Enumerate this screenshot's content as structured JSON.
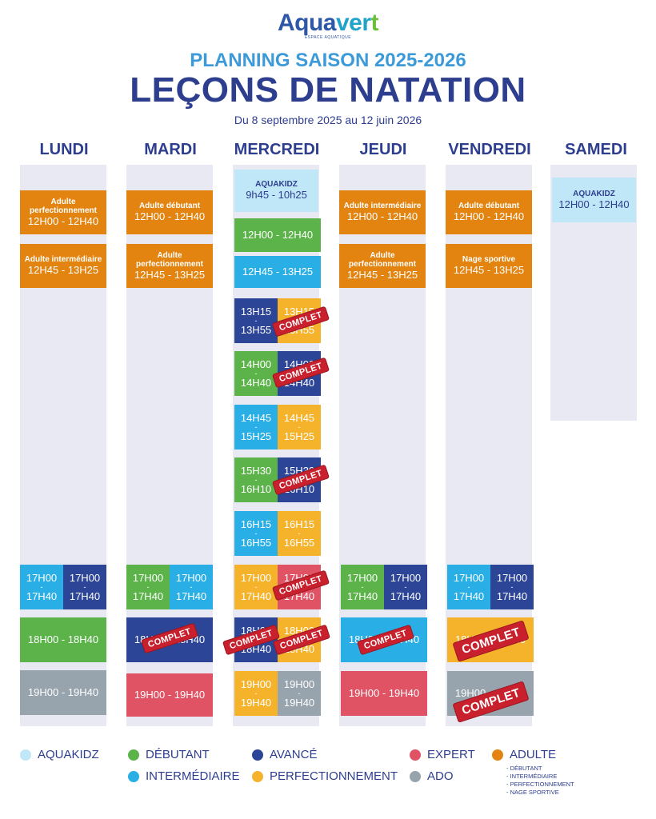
{
  "logo": {
    "part1": "Aqua",
    "part2": "ver",
    "part3": "t",
    "tagline": "ESPACE AQUATIQUE"
  },
  "header": {
    "subtitle": "PLANNING SAISON 2025-2026",
    "title": "LEÇONS DE NATATION",
    "dates": "Du 8 septembre 2025 au 12 juin 2026"
  },
  "days": [
    "LUNDI",
    "MARDI",
    "MERCREDI",
    "JEUDI",
    "VENDREDI",
    "SAMEDI"
  ],
  "full_label": "COMPLET",
  "colors": {
    "aquakidz": "#bfe7f7",
    "debutant": "#5cb34a",
    "intermediaire": "#2aaee6",
    "avance": "#2d4596",
    "perfectionnement": "#f5b32c",
    "expert": "#e05364",
    "ado": "#97a4ae",
    "adulte": "#e2840f",
    "column": "#e8e9f3"
  },
  "lundi": {
    "s1": {
      "name": "Adulte perfectionnement",
      "time": "12H00 - 12H40"
    },
    "s2": {
      "name": "Adulte intermédiaire",
      "time": "12H45 - 13H25"
    },
    "s3a": {
      "t1": "17H00",
      "t2": "17H40"
    },
    "s3b": {
      "t1": "17H00",
      "t2": "17H40"
    },
    "s4": {
      "time": "18H00 - 18H40"
    },
    "s5": {
      "time": "19H00 - 19H40"
    }
  },
  "mardi": {
    "s1": {
      "name": "Adulte débutant",
      "time": "12H00 - 12H40"
    },
    "s2": {
      "name": "Adulte perfectionnement",
      "time": "12H45 - 13H25"
    },
    "s3a": {
      "t1": "17H00",
      "t2": "17H40"
    },
    "s3b": {
      "t1": "17H00",
      "t2": "17H40"
    },
    "s4": {
      "time": "18H00 - 18H40"
    },
    "s5": {
      "time": "19H00 - 19H40"
    }
  },
  "mercredi": {
    "s1": {
      "name": "AQUAKIDZ",
      "time": "9h45 - 10h25"
    },
    "s2": {
      "time": "12H00 - 12H40"
    },
    "s3": {
      "time": "12H45 - 13H25"
    },
    "pairs": [
      {
        "t1": "13H15",
        "t2": "13H55"
      },
      {
        "t1": "14H00",
        "t2": "14H40"
      },
      {
        "t1": "14H45",
        "t2": "15H25"
      },
      {
        "t1": "15H30",
        "t2": "16H10"
      },
      {
        "t1": "16H15",
        "t2": "16H55"
      },
      {
        "t1": "17H00",
        "t2": "17H40"
      },
      {
        "t1": "18H00",
        "t2": "18H40"
      },
      {
        "t1": "19H00",
        "t2": "19H40"
      }
    ]
  },
  "jeudi": {
    "s1": {
      "name": "Adulte intermédiaire",
      "time": "12H00 - 12H40"
    },
    "s2": {
      "name": "Adulte perfectionnement",
      "time": "12H45 - 13H25"
    },
    "s3a": {
      "t1": "17H00",
      "t2": "17H40"
    },
    "s3b": {
      "t1": "17H00",
      "t2": "17H40"
    },
    "s4": {
      "time": "18H00 - 18H40"
    },
    "s5": {
      "time": "19H00 - 19H40"
    }
  },
  "vendredi": {
    "s1": {
      "name": "Adulte débutant",
      "time": "12H00 - 12H40"
    },
    "s2": {
      "name": "Nage sportive",
      "time": "12H45 - 13H25"
    },
    "s3a": {
      "t1": "17H00",
      "t2": "17H40"
    },
    "s3b": {
      "t1": "17H00",
      "t2": "17H40"
    },
    "s4": {
      "time": "18H00 - 18H40"
    },
    "s5": {
      "time": "19H00 - 19H40"
    }
  },
  "samedi": {
    "s1": {
      "name": "AQUAKIDZ",
      "time": "12H00 - 12H40"
    }
  },
  "legend": {
    "aquakidz": "AQUAKIDZ",
    "debutant": "DÉBUTANT",
    "avance": "AVANCÉ",
    "expert": "EXPERT",
    "adulte": "ADULTE",
    "intermediaire": "INTERMÉDIAIRE",
    "perfectionnement": "PERFECTIONNEMENT",
    "ado": "ADO",
    "adulte_sub": [
      "DÉBUTANT",
      "INTERMÉDIAIRE",
      "PERFECTIONNEMENT",
      "NAGE SPORTIVE"
    ]
  }
}
